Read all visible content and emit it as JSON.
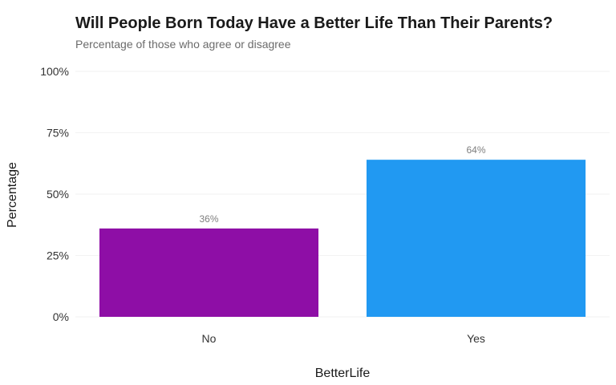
{
  "chart_data": {
    "type": "bar",
    "title": "Will People Born Today Have a Better Life Than Their Parents?",
    "subtitle": "Percentage of those who agree or disagree",
    "xlabel": "BetterLife",
    "ylabel": "Percentage",
    "categories": [
      "No",
      "Yes"
    ],
    "values": [
      36,
      64
    ],
    "data_labels": [
      "36%",
      "64%"
    ],
    "colors": [
      "#8E0EA6",
      "#2199F2"
    ],
    "ylim": [
      0,
      100
    ],
    "yticks": [
      0,
      25,
      50,
      75,
      100
    ],
    "ytick_labels": [
      "0%",
      "25%",
      "50%",
      "75%",
      "100%"
    ],
    "grid": true,
    "legend": "none"
  }
}
